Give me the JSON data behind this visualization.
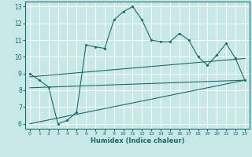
{
  "xlabel": "Humidex (Indice chaleur)",
  "bg_color": "#c8e8e8",
  "grid_color": "#ffffff",
  "line_color": "#1a6b6b",
  "xlim": [
    -0.5,
    23.5
  ],
  "ylim": [
    5.7,
    13.3
  ],
  "xticks": [
    0,
    1,
    2,
    3,
    4,
    5,
    6,
    7,
    8,
    9,
    10,
    11,
    12,
    13,
    14,
    15,
    16,
    17,
    18,
    19,
    20,
    21,
    22,
    23
  ],
  "yticks": [
    6,
    7,
    8,
    9,
    10,
    11,
    12,
    13
  ],
  "main_x": [
    0,
    1,
    2,
    3,
    4,
    5,
    6,
    7,
    8,
    9,
    10,
    11,
    12,
    13,
    14,
    15,
    16,
    17,
    18,
    19,
    20,
    21,
    22,
    23
  ],
  "main_y": [
    9.0,
    8.6,
    8.2,
    6.0,
    6.2,
    6.7,
    10.7,
    10.6,
    10.5,
    12.2,
    12.7,
    13.0,
    12.2,
    11.0,
    10.9,
    10.9,
    11.4,
    11.0,
    10.0,
    9.5,
    10.1,
    10.8,
    9.9,
    8.6
  ],
  "line2_x": [
    0,
    23
  ],
  "line2_y": [
    8.15,
    8.6
  ],
  "line3_x": [
    0,
    23
  ],
  "line3_y": [
    8.8,
    9.9
  ],
  "line4_x": [
    0,
    23
  ],
  "line4_y": [
    6.0,
    8.6
  ]
}
